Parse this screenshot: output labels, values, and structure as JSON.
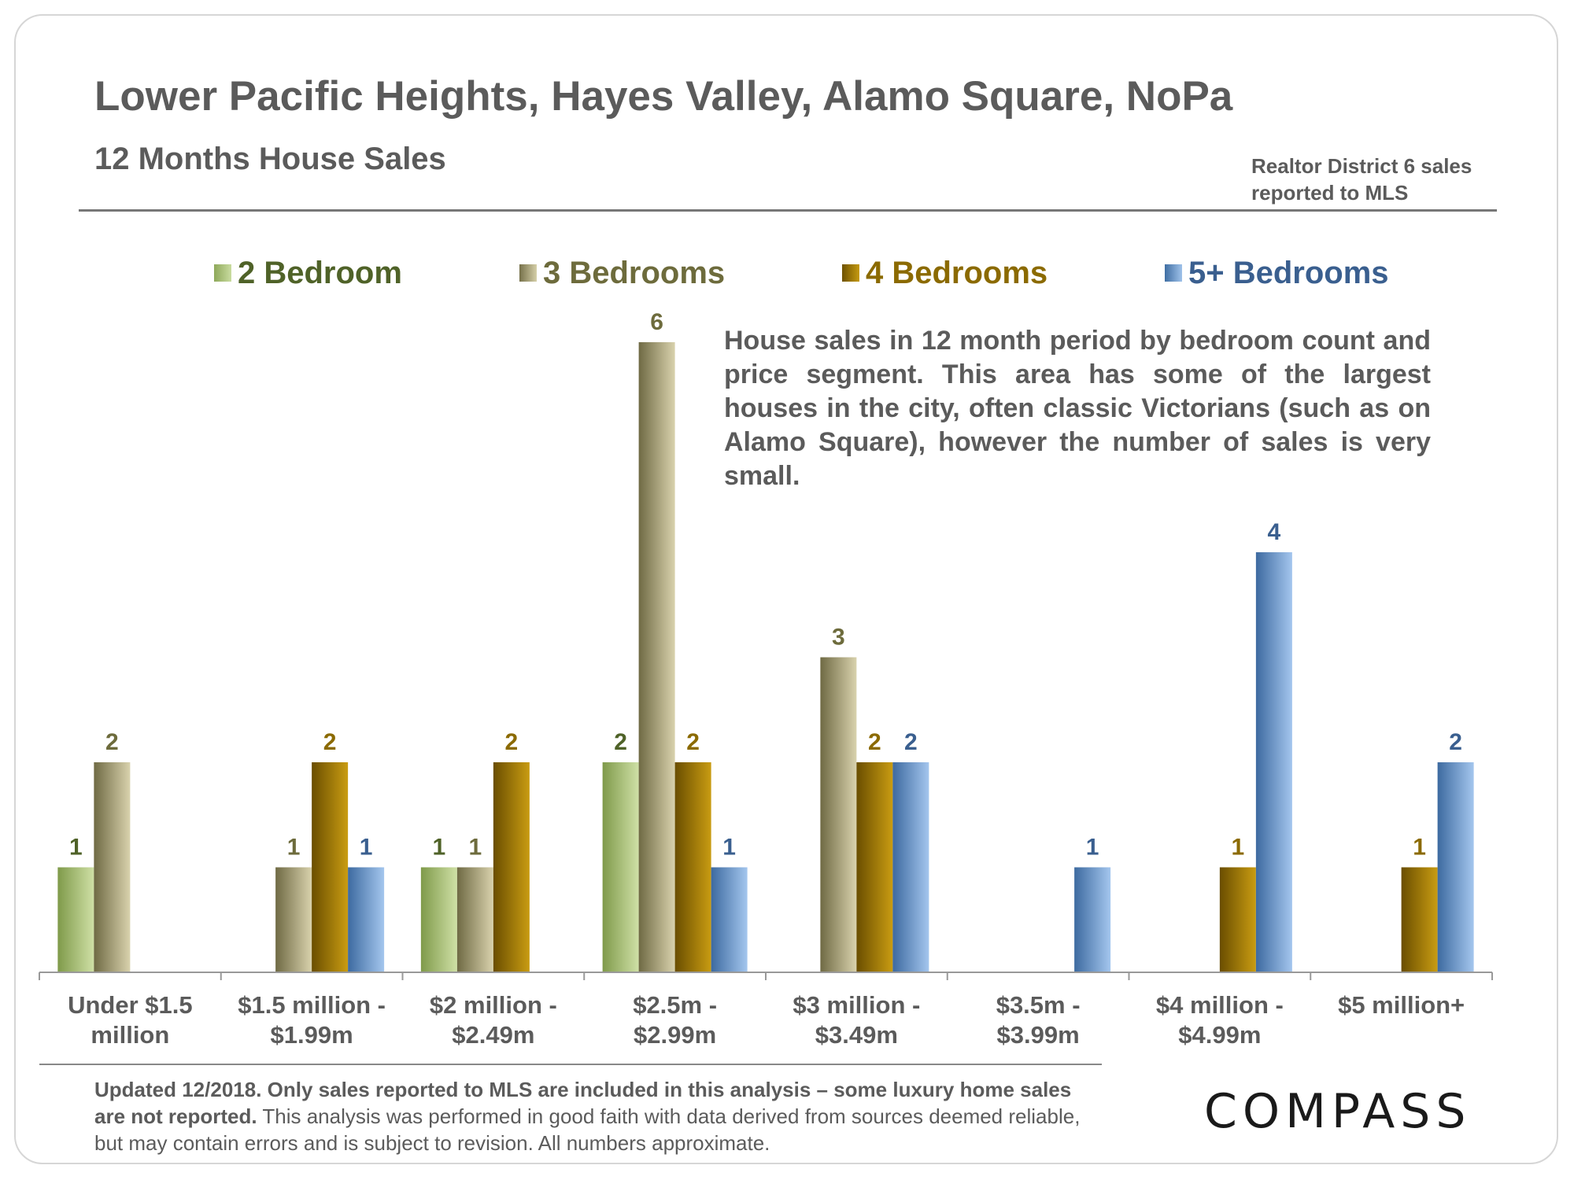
{
  "header": {
    "title": "Lower Pacific Heights, Hayes Valley, Alamo Square, NoPa",
    "subtitle": "12 Months House Sales",
    "source_line1": "Realtor District 6 sales",
    "source_line2": "reported to MLS"
  },
  "annotation": "House sales in 12 month period by bedroom count and price segment. This area has some of the largest houses in the city, often classic Victorians (such as on Alamo Square), however the number of sales is very small.",
  "footer": {
    "bold_text": "Updated 12/2018. Only sales reported to MLS are included in this analysis – some luxury home sales are not reported.",
    "regular_text": " This analysis was performed in good faith with data derived from sources deemed reliable, but may contain errors and is subject to revision. All numbers approximate."
  },
  "logo": {
    "text": "COMPASS"
  },
  "colors": {
    "2br": "#4f6228",
    "3br": "#6d6b3c",
    "4br": "#8b6a00",
    "5br": "#3a5f8f",
    "text_gray": "#5b5b5b"
  },
  "chart_data": {
    "type": "bar",
    "categories": [
      [
        "Under $1.5",
        "million"
      ],
      [
        "$1.5 million -",
        "$1.99m"
      ],
      [
        "$2 million -",
        "$2.49m"
      ],
      [
        "$2.5m -",
        "$2.99m"
      ],
      [
        "$3 million -",
        "$3.49m"
      ],
      [
        "$3.5m -",
        "$3.99m"
      ],
      [
        "$4 million -",
        "$4.99m"
      ],
      [
        "$5 million+"
      ]
    ],
    "series": [
      {
        "name": "2 Bedroom",
        "values": [
          1,
          null,
          1,
          2,
          null,
          null,
          null,
          null
        ]
      },
      {
        "name": "3 Bedrooms",
        "values": [
          2,
          1,
          1,
          6,
          3,
          null,
          null,
          null
        ]
      },
      {
        "name": "4 Bedrooms",
        "values": [
          null,
          2,
          2,
          2,
          2,
          null,
          1,
          1
        ]
      },
      {
        "name": "5+ Bedrooms",
        "values": [
          null,
          1,
          null,
          1,
          2,
          1,
          4,
          2
        ]
      }
    ],
    "ylim": [
      0,
      6
    ],
    "grid": false,
    "legend_placement": "top"
  }
}
